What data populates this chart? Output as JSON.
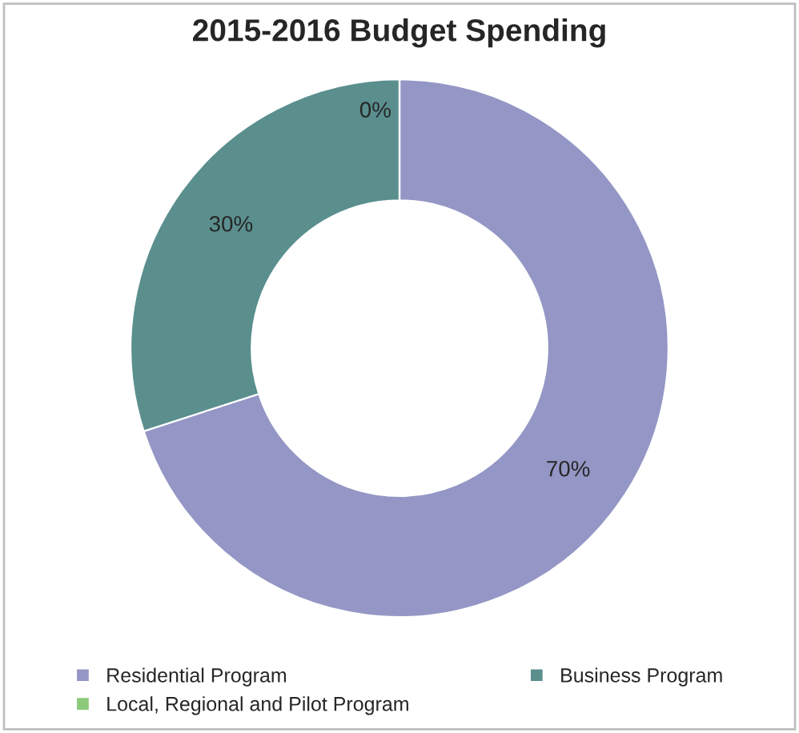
{
  "chart_data": {
    "type": "donut",
    "title": "2015-2016 Budget Spending",
    "categories": [
      "Residential Program",
      "Business Program",
      "Local, Regional and Pilot Program"
    ],
    "values": [
      70,
      30,
      0
    ],
    "colors": [
      "#9497c5",
      "#5a8f8e",
      "#8cc97b"
    ],
    "value_labels": [
      "70%",
      "30%",
      "0%"
    ],
    "legend": "bottom"
  }
}
